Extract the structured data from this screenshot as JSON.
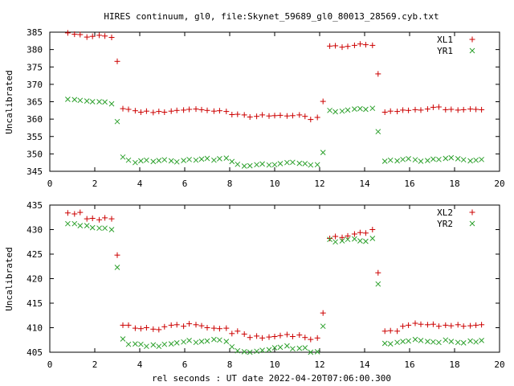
{
  "colors": {
    "background": "#ffffff",
    "axes": "#000000",
    "xl": "#cc0000",
    "yr": "#2ca02c"
  },
  "chart_data": [
    {
      "type": "scatter",
      "title": "HIRES continuum, gl0, file:Skynet_59689_gl0_80013_28569.cyb.txt",
      "xlabel": "",
      "ylabel": "Uncalibrated",
      "xlim": [
        0,
        20
      ],
      "ylim": [
        345,
        385
      ],
      "xticks": [
        0,
        2,
        4,
        6,
        8,
        10,
        12,
        14,
        16,
        18,
        20
      ],
      "yticks": [
        345,
        350,
        355,
        360,
        365,
        370,
        375,
        380,
        385
      ],
      "legend_position": "top-right",
      "grid": false,
      "x": [
        0.8,
        1.1,
        1.35,
        1.65,
        1.9,
        2.2,
        2.45,
        2.75,
        3.0,
        3.25,
        3.5,
        3.8,
        4.05,
        4.3,
        4.6,
        4.85,
        5.1,
        5.4,
        5.65,
        5.95,
        6.2,
        6.5,
        6.75,
        7.0,
        7.3,
        7.55,
        7.85,
        8.1,
        8.35,
        8.65,
        8.9,
        9.2,
        9.45,
        9.75,
        10.0,
        10.25,
        10.55,
        10.8,
        11.1,
        11.35,
        11.6,
        11.9,
        12.15,
        12.45,
        12.7,
        13.0,
        13.25,
        13.55,
        13.8,
        14.05,
        14.35,
        14.6,
        14.9,
        15.15,
        15.45,
        15.7,
        15.95,
        16.25,
        16.5,
        16.8,
        17.05,
        17.3,
        17.6,
        17.85,
        18.15,
        18.4,
        18.7,
        18.95,
        19.2
      ],
      "series": [
        {
          "name": "XL1",
          "marker": "plus",
          "values": [
            384.8,
            384.4,
            384.3,
            383.6,
            383.8,
            384.1,
            383.9,
            383.5,
            376.6,
            363.0,
            362.8,
            362.4,
            362.0,
            362.3,
            361.9,
            362.2,
            362.0,
            362.3,
            362.5,
            362.6,
            362.8,
            362.9,
            362.7,
            362.5,
            362.3,
            362.4,
            362.2,
            361.3,
            361.4,
            361.2,
            360.6,
            360.8,
            361.2,
            360.9,
            361.0,
            361.1,
            360.9,
            361.0,
            361.2,
            360.8,
            359.9,
            360.5,
            365.1,
            381.0,
            381.1,
            380.7,
            380.9,
            381.2,
            381.6,
            381.4,
            381.2,
            373.0,
            362.0,
            362.3,
            362.2,
            362.6,
            362.5,
            362.7,
            362.6,
            362.9,
            363.4,
            363.5,
            362.7,
            362.8,
            362.6,
            362.7,
            362.9,
            362.8,
            362.7
          ]
        },
        {
          "name": "YR1",
          "marker": "cross",
          "values": [
            365.7,
            365.6,
            365.4,
            365.2,
            365.0,
            365.0,
            364.9,
            364.4,
            359.3,
            349.1,
            348.2,
            347.5,
            348.0,
            348.2,
            347.8,
            348.1,
            348.3,
            348.0,
            347.7,
            348.1,
            348.4,
            348.2,
            348.5,
            348.7,
            348.2,
            348.6,
            348.8,
            347.8,
            347.0,
            346.5,
            346.6,
            346.9,
            347.1,
            346.8,
            346.9,
            347.2,
            347.5,
            347.6,
            347.3,
            347.2,
            346.8,
            346.9,
            350.4,
            362.5,
            362.1,
            362.3,
            362.6,
            362.9,
            363.0,
            362.8,
            363.1,
            356.4,
            347.9,
            348.2,
            348.0,
            348.4,
            348.6,
            348.3,
            347.9,
            348.1,
            348.5,
            348.4,
            348.7,
            348.9,
            348.6,
            348.3,
            348.0,
            348.2,
            348.4
          ]
        }
      ]
    },
    {
      "type": "scatter",
      "title": "",
      "xlabel": "rel seconds : UT date 2022-04-20T07:06:00.300",
      "ylabel": "Uncalibrated",
      "xlim": [
        0,
        20
      ],
      "ylim": [
        405,
        435
      ],
      "xticks": [
        0,
        2,
        4,
        6,
        8,
        10,
        12,
        14,
        16,
        18,
        20
      ],
      "yticks": [
        405,
        410,
        415,
        420,
        425,
        430,
        435
      ],
      "legend_position": "top-right",
      "grid": false,
      "x": [
        0.8,
        1.1,
        1.35,
        1.65,
        1.9,
        2.2,
        2.45,
        2.75,
        3.0,
        3.25,
        3.5,
        3.8,
        4.05,
        4.3,
        4.6,
        4.85,
        5.1,
        5.4,
        5.65,
        5.95,
        6.2,
        6.5,
        6.75,
        7.0,
        7.3,
        7.55,
        7.85,
        8.1,
        8.35,
        8.65,
        8.9,
        9.2,
        9.45,
        9.75,
        10.0,
        10.25,
        10.55,
        10.8,
        11.1,
        11.35,
        11.6,
        11.9,
        12.15,
        12.45,
        12.7,
        13.0,
        13.25,
        13.55,
        13.8,
        14.05,
        14.35,
        14.6,
        14.9,
        15.15,
        15.45,
        15.7,
        15.95,
        16.25,
        16.5,
        16.8,
        17.05,
        17.3,
        17.6,
        17.85,
        18.15,
        18.4,
        18.7,
        18.95,
        19.2
      ],
      "series": [
        {
          "name": "XL2",
          "marker": "plus",
          "values": [
            433.4,
            433.2,
            433.5,
            432.2,
            432.3,
            432.0,
            432.4,
            432.2,
            424.8,
            410.5,
            410.5,
            409.9,
            409.8,
            410.0,
            409.7,
            409.6,
            410.2,
            410.5,
            410.6,
            410.3,
            410.8,
            410.6,
            410.4,
            410.0,
            409.9,
            409.8,
            409.9,
            408.8,
            409.3,
            408.7,
            408.0,
            408.3,
            407.9,
            408.1,
            408.2,
            408.4,
            408.6,
            408.2,
            408.5,
            408.0,
            407.6,
            407.9,
            413.0,
            428.2,
            428.6,
            428.4,
            428.7,
            429.1,
            429.4,
            429.3,
            430.0,
            421.2,
            409.3,
            409.4,
            409.3,
            410.3,
            410.5,
            410.9,
            410.7,
            410.6,
            410.7,
            410.3,
            410.5,
            410.4,
            410.6,
            410.3,
            410.4,
            410.5,
            410.6
          ]
        },
        {
          "name": "YR2",
          "marker": "cross",
          "values": [
            431.2,
            431.2,
            430.8,
            430.8,
            430.4,
            430.3,
            430.3,
            430.0,
            422.3,
            407.7,
            406.6,
            406.7,
            406.6,
            406.2,
            406.5,
            406.2,
            406.6,
            406.7,
            406.9,
            407.1,
            407.4,
            407.0,
            407.2,
            407.3,
            407.6,
            407.5,
            407.2,
            406.1,
            405.3,
            405.1,
            405.0,
            405.2,
            405.4,
            405.5,
            405.9,
            406.0,
            406.3,
            405.7,
            405.8,
            405.9,
            405.0,
            405.1,
            410.3,
            428.0,
            427.5,
            427.7,
            428.0,
            428.1,
            427.7,
            427.6,
            428.2,
            418.9,
            406.8,
            406.7,
            407.0,
            407.2,
            407.3,
            407.6,
            407.4,
            407.2,
            407.1,
            407.0,
            407.5,
            407.2,
            407.0,
            406.9,
            407.3,
            407.1,
            407.4
          ]
        }
      ]
    }
  ]
}
